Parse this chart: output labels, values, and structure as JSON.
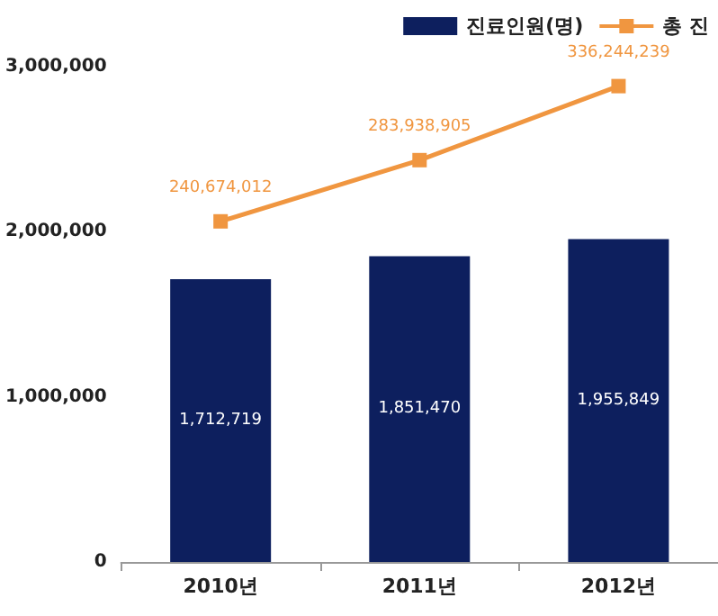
{
  "chart_data": {
    "type": "bar",
    "categories": [
      "2010년",
      "2011년",
      "2012년"
    ],
    "series": [
      {
        "name": "진료인원(명)",
        "color": "#0d1f5e",
        "values": [
          1712719,
          1851470,
          1955849
        ],
        "value_labels": [
          "1,712,719",
          "1,851,470",
          "1,955,849"
        ]
      },
      {
        "name": "총 진",
        "type": "line",
        "axis": "y2",
        "color": "#f09640",
        "values": [
          240674012,
          283938905,
          336244239
        ],
        "value_labels": [
          "240,674,012",
          "283,938,905",
          "336,244,239"
        ]
      }
    ],
    "ylim": [
      0,
      3000000
    ],
    "yticks": [
      {
        "value": 0,
        "label": "0"
      },
      {
        "value": 1000000,
        "label": "1,000,000"
      },
      {
        "value": 2000000,
        "label": "2,000,000"
      },
      {
        "value": 3000000,
        "label": "3,000,000"
      }
    ],
    "legend": "top right",
    "grid": false,
    "marker": "square",
    "line_style": "solid"
  }
}
